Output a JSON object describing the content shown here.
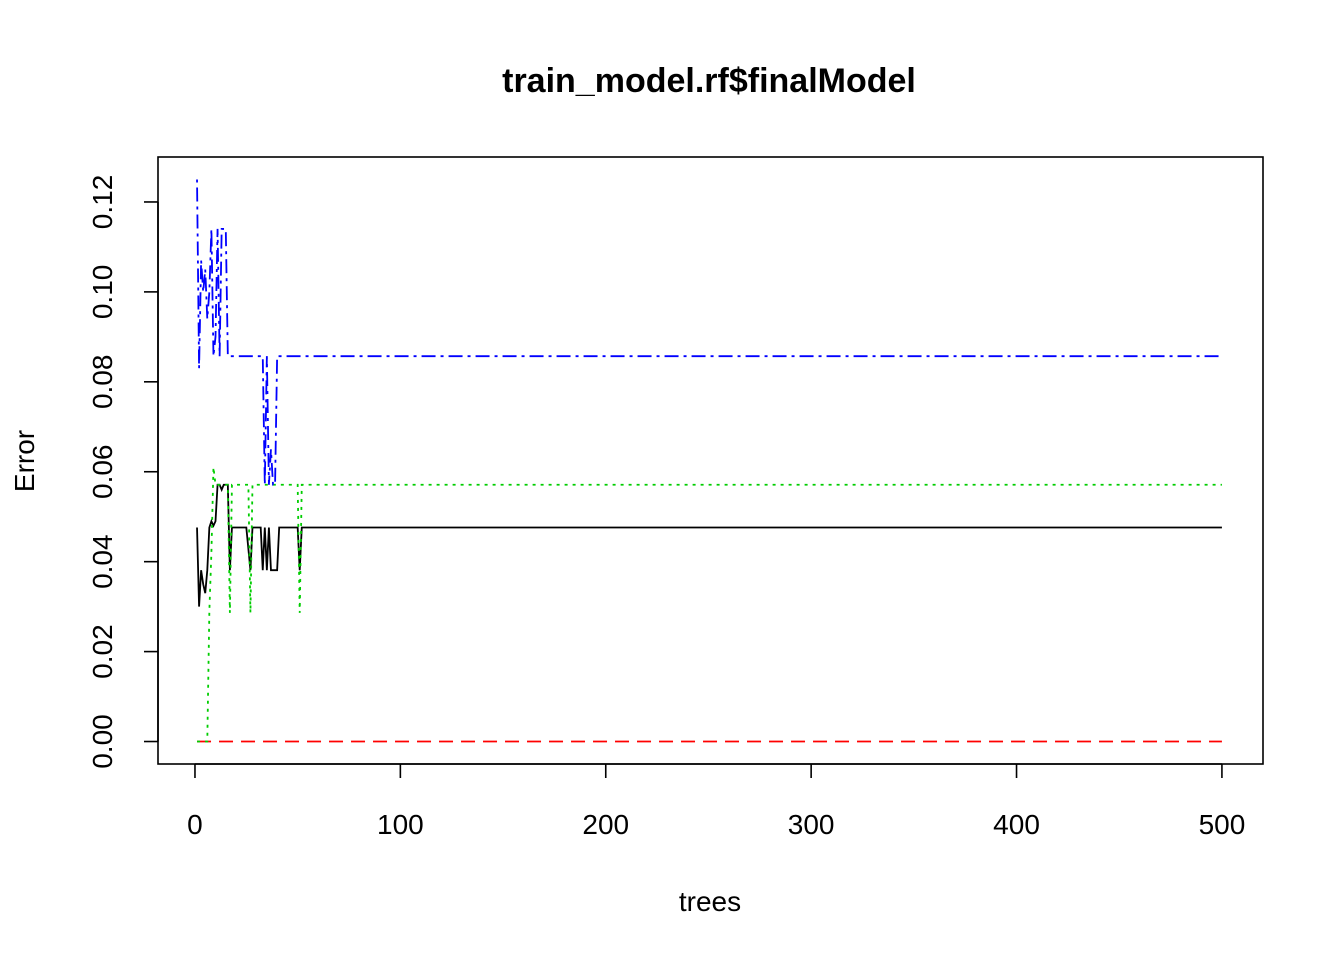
{
  "chart_data": {
    "type": "line",
    "title": "train_model.rf$finalModel",
    "xlabel": "trees",
    "ylabel": "Error",
    "xlim": [
      -18,
      520
    ],
    "ylim": [
      -0.005,
      0.13
    ],
    "x_ticks": [
      0,
      100,
      200,
      300,
      400,
      500
    ],
    "x_tick_labels": [
      "0",
      "100",
      "200",
      "300",
      "400",
      "500"
    ],
    "y_ticks": [
      0.0,
      0.02,
      0.04,
      0.06,
      0.08,
      0.1,
      0.12
    ],
    "y_tick_labels": [
      "0.00",
      "0.02",
      "0.04",
      "0.06",
      "0.08",
      "0.10",
      "0.12"
    ],
    "grid": false,
    "legend": "none",
    "series": [
      {
        "color": "#000000",
        "dash": "solid",
        "points": [
          [
            1,
            0.0476
          ],
          [
            2,
            0.03
          ],
          [
            3,
            0.0381
          ],
          [
            4,
            0.035
          ],
          [
            5,
            0.033
          ],
          [
            6,
            0.0381
          ],
          [
            7,
            0.0476
          ],
          [
            8,
            0.049
          ],
          [
            9,
            0.048
          ],
          [
            10,
            0.049
          ],
          [
            11,
            0.0571
          ],
          [
            12,
            0.0571
          ],
          [
            13,
            0.056
          ],
          [
            14,
            0.0571
          ],
          [
            15,
            0.0571
          ],
          [
            16,
            0.0571
          ],
          [
            17,
            0.0381
          ],
          [
            18,
            0.0476
          ],
          [
            20,
            0.0476
          ],
          [
            25,
            0.0476
          ],
          [
            27,
            0.0381
          ],
          [
            28,
            0.0476
          ],
          [
            32,
            0.0476
          ],
          [
            33,
            0.0381
          ],
          [
            34,
            0.0476
          ],
          [
            35,
            0.0381
          ],
          [
            36,
            0.0476
          ],
          [
            37,
            0.0381
          ],
          [
            40,
            0.0381
          ],
          [
            41,
            0.0476
          ],
          [
            50,
            0.0476
          ],
          [
            51,
            0.0381
          ],
          [
            52,
            0.0476
          ],
          [
            500,
            0.0476
          ]
        ]
      },
      {
        "color": "#ff0000",
        "dash": "dashed",
        "points": [
          [
            1,
            0.0
          ],
          [
            500,
            0.0
          ]
        ]
      },
      {
        "color": "#00cd00",
        "dash": "dotted",
        "points": [
          [
            1,
            0.0
          ],
          [
            5,
            0.0
          ],
          [
            6,
            0.0
          ],
          [
            7,
            0.029
          ],
          [
            8,
            0.042
          ],
          [
            9,
            0.061
          ],
          [
            10,
            0.0571
          ],
          [
            16,
            0.0571
          ],
          [
            17,
            0.0286
          ],
          [
            18,
            0.0571
          ],
          [
            26,
            0.0571
          ],
          [
            27,
            0.0286
          ],
          [
            28,
            0.0571
          ],
          [
            50,
            0.0571
          ],
          [
            51,
            0.0286
          ],
          [
            52,
            0.0571
          ],
          [
            500,
            0.0571
          ]
        ]
      },
      {
        "color": "#0000ff",
        "dash": "dashdot",
        "points": [
          [
            1,
            0.125
          ],
          [
            2,
            0.083
          ],
          [
            3,
            0.107
          ],
          [
            4,
            0.1
          ],
          [
            5,
            0.105
          ],
          [
            6,
            0.094
          ],
          [
            7,
            0.1
          ],
          [
            8,
            0.114
          ],
          [
            9,
            0.0857
          ],
          [
            10,
            0.09
          ],
          [
            11,
            0.114
          ],
          [
            12,
            0.0857
          ],
          [
            13,
            0.114
          ],
          [
            15,
            0.114
          ],
          [
            16,
            0.0857
          ],
          [
            33,
            0.0857
          ],
          [
            34,
            0.0571
          ],
          [
            35,
            0.0857
          ],
          [
            36,
            0.0571
          ],
          [
            37,
            0.065
          ],
          [
            38,
            0.0571
          ],
          [
            39,
            0.0571
          ],
          [
            40,
            0.0857
          ],
          [
            500,
            0.0857
          ]
        ]
      }
    ]
  }
}
